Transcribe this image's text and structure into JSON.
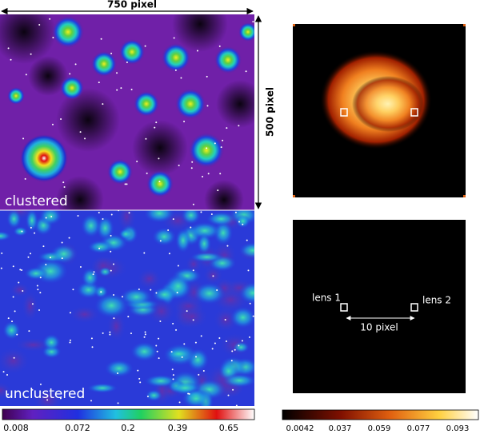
{
  "figure": {
    "width_label": "750 pixel",
    "height_label": "500 pixel",
    "panel_labels": [
      "clustered",
      "unclustered"
    ],
    "lens_labels": [
      "lens 1",
      "lens 2"
    ],
    "separation_label": "10 pixel",
    "colorbars": [
      {
        "ticks": [
          0.008,
          0.072,
          0.2,
          0.39,
          0.65
        ]
      },
      {
        "ticks": [
          0.0042,
          0.037,
          0.059,
          0.077,
          0.093
        ]
      }
    ]
  }
}
